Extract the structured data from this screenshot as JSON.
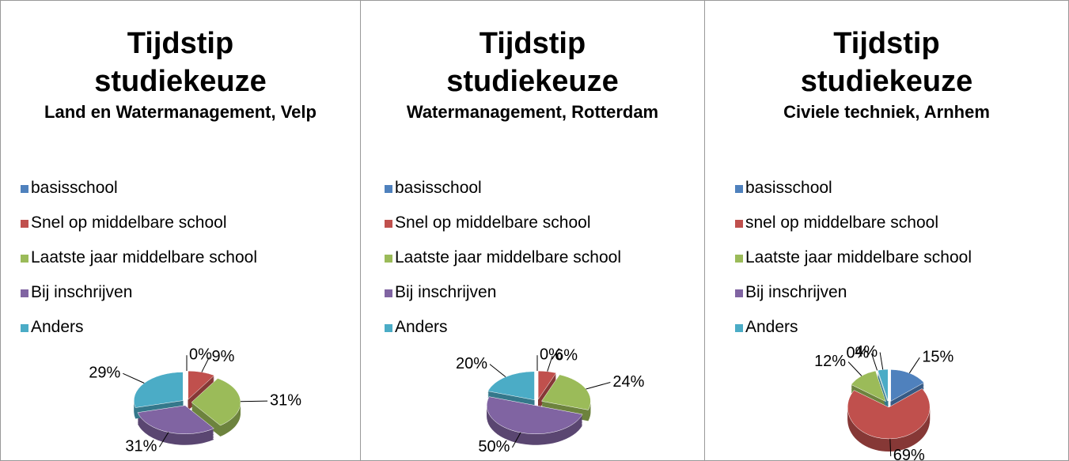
{
  "chart_data": [
    {
      "type": "pie",
      "title": "Tijdstip studiekeuze",
      "subtitle": "Land en Watermanagement, Velp",
      "categories": [
        "basisschool",
        "Snel op middelbare school",
        "Laatste jaar middelbare school",
        "Bij inschrijven",
        "Anders"
      ],
      "values": [
        0,
        9,
        31,
        31,
        29
      ],
      "value_labels": [
        "0%",
        "9%",
        "31%",
        "31%",
        "29%"
      ],
      "colors": [
        "#4f81bd",
        "#c0504d",
        "#9bbb59",
        "#8064a2",
        "#4bacc6"
      ],
      "legend": "top"
    },
    {
      "type": "pie",
      "title": "Tijdstip studiekeuze",
      "subtitle": "Watermanagement, Rotterdam",
      "categories": [
        "basisschool",
        "Snel op middelbare school",
        "Laatste jaar middelbare school",
        "Bij inschrijven",
        "Anders"
      ],
      "values": [
        0,
        6,
        24,
        50,
        20
      ],
      "value_labels": [
        "0%",
        "6%",
        "24%",
        "50%",
        "20%"
      ],
      "colors": [
        "#4f81bd",
        "#c0504d",
        "#9bbb59",
        "#8064a2",
        "#4bacc6"
      ],
      "legend": "top"
    },
    {
      "type": "pie",
      "title": "Tijdstip studiekeuze",
      "subtitle": "Civiele techniek, Arnhem",
      "categories": [
        "basisschool",
        "snel op middelbare school",
        "Laatste jaar middelbare school",
        "Bij inschrijven",
        "Anders"
      ],
      "values": [
        15,
        69,
        12,
        0,
        4
      ],
      "value_labels": [
        "15%",
        "69%",
        "12%",
        "0%",
        "4%"
      ],
      "colors": [
        "#4f81bd",
        "#c0504d",
        "#9bbb59",
        "#8064a2",
        "#4bacc6"
      ],
      "legend": "top"
    }
  ]
}
